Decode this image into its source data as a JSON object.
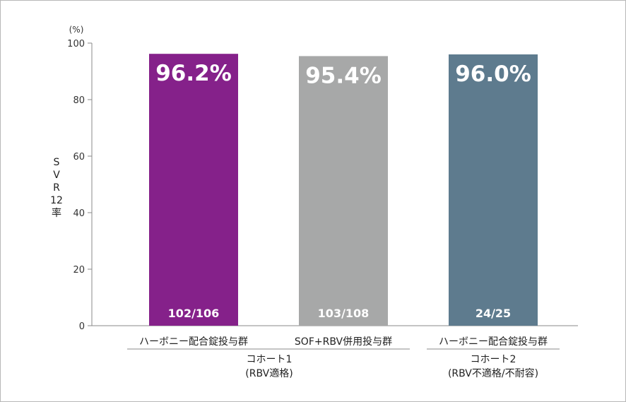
{
  "chart_data": {
    "type": "bar",
    "unit_label": "(%)",
    "ylabel_chars": [
      "S",
      "V",
      "R",
      "12",
      "率"
    ],
    "ylim": [
      0,
      100
    ],
    "yticks": [
      "0",
      "20",
      "40",
      "60",
      "80",
      "100"
    ],
    "categories": [
      "ハーボニー配合錠投与群",
      "SOF+RBV併用投与群",
      "ハーボニー配合錠投与群"
    ],
    "values": [
      96.2,
      95.4,
      96.0
    ],
    "value_labels": [
      "96.2%",
      "95.4%",
      "96.0%"
    ],
    "fraction_labels": [
      "102/106",
      "103/108",
      "24/25"
    ],
    "colors": [
      "#85218a",
      "#a7a8a8",
      "#5e7b8e"
    ],
    "groups": [
      {
        "line1": "コホート1",
        "line2": "(RBV適格)"
      },
      {
        "line1": "コホート2",
        "line2": "(RBV不適格/不耐容)"
      }
    ],
    "grid": false
  }
}
